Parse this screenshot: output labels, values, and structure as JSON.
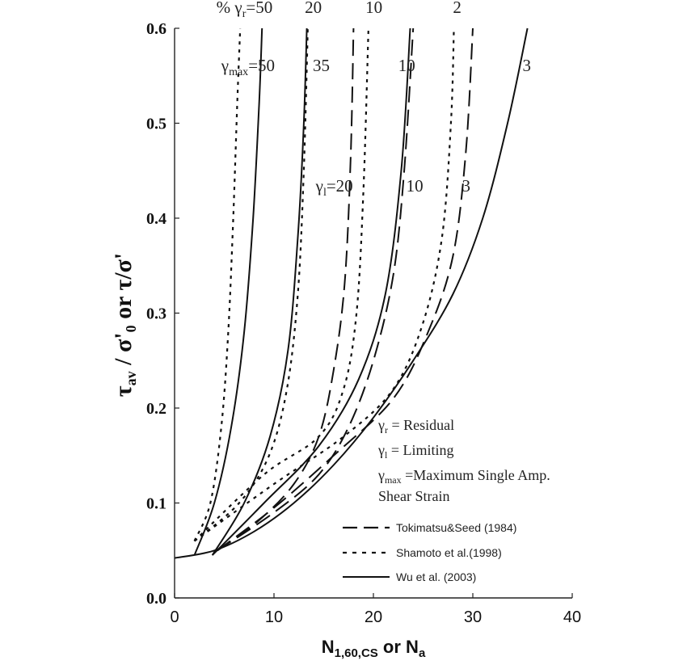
{
  "chart_data": {
    "type": "line",
    "xlabel": "N",
    "xlabel_sub": "1,60,CS",
    "xlabel_tail": " or N",
    "xlabel_tail_sub": "a",
    "ylabel_main": "τ",
    "ylabel_sub": "av",
    "ylabel_rest": " / σ'",
    "ylabel_sub2": "0",
    "ylabel_tail": " or τ/σ'",
    "xlim": [
      0,
      40
    ],
    "ylim": [
      0,
      0.6
    ],
    "xticks": [
      "0",
      "10",
      "20",
      "30",
      "40"
    ],
    "yticks": [
      "0.0",
      "0.1",
      "0.2",
      "0.3",
      "0.4",
      "0.5",
      "0.6"
    ],
    "grid": false,
    "legend": {
      "placement": "bottom-right",
      "entries": [
        {
          "label": "Tokimatsu&Seed (1984)",
          "style": "dashed"
        },
        {
          "label": "Shamoto  et al.(1998)",
          "style": "dotted"
        },
        {
          "label": "Wu et al. (2003)",
          "style": "solid"
        }
      ]
    },
    "definitions": [
      {
        "sym": "γ",
        "sub": "r",
        "text": " = Residual"
      },
      {
        "sym": "γ",
        "sub": "l",
        "text": " = Limiting"
      },
      {
        "sym": "γ",
        "sub": "max",
        "text": " =Maximum Single Amp."
      },
      {
        "sym": "",
        "sub": "",
        "text": "Shear Strain"
      }
    ],
    "annotations": [
      {
        "prefix": "% γ",
        "sub": "r",
        "text": "=50",
        "x": 4.2,
        "y": 0.616
      },
      {
        "prefix": "",
        "sub": "",
        "text": "20",
        "x": 13.1,
        "y": 0.616
      },
      {
        "prefix": "",
        "sub": "",
        "text": "10",
        "x": 19.2,
        "y": 0.616
      },
      {
        "prefix": "",
        "sub": "",
        "text": "2",
        "x": 28.0,
        "y": 0.616
      },
      {
        "prefix": "γ",
        "sub": "max",
        "text": "=50",
        "x": 4.7,
        "y": 0.555
      },
      {
        "prefix": "",
        "sub": "",
        "text": "35",
        "x": 13.9,
        "y": 0.555
      },
      {
        "prefix": "",
        "sub": "",
        "text": "10",
        "x": 22.5,
        "y": 0.555
      },
      {
        "prefix": "",
        "sub": "",
        "text": "3",
        "x": 35.0,
        "y": 0.555
      },
      {
        "prefix": "γ",
        "sub": "l",
        "text": "=20",
        "x": 14.2,
        "y": 0.428
      },
      {
        "prefix": "",
        "sub": "",
        "text": "10",
        "x": 23.3,
        "y": 0.428
      },
      {
        "prefix": "",
        "sub": "",
        "text": "3",
        "x": 28.9,
        "y": 0.428
      }
    ],
    "series": [
      {
        "group": "Tokimatsu&Seed (1984)",
        "style": "dashed",
        "x": [
          4.3,
          8.3,
          12,
          14.5,
          16,
          17.1,
          17.7,
          18.0
        ],
        "y": [
          0.05,
          0.08,
          0.12,
          0.17,
          0.24,
          0.33,
          0.46,
          0.6
        ]
      },
      {
        "group": "Tokimatsu&Seed (1984)",
        "style": "dashed",
        "x": [
          4.3,
          10,
          14.5,
          17.5,
          20,
          22,
          23.1,
          24.0
        ],
        "y": [
          0.05,
          0.09,
          0.13,
          0.18,
          0.25,
          0.34,
          0.45,
          0.6
        ]
      },
      {
        "group": "Tokimatsu&Seed (1984)",
        "style": "dashed",
        "x": [
          4.3,
          10,
          16,
          22,
          25.5,
          28,
          29.3,
          30.0
        ],
        "y": [
          0.05,
          0.095,
          0.15,
          0.21,
          0.28,
          0.36,
          0.47,
          0.6
        ]
      },
      {
        "group": "Shamoto  et al.(1998)",
        "style": "dotted",
        "x": [
          2.0,
          3.6,
          4.7,
          5.4,
          5.9,
          6.3,
          6.6
        ],
        "y": [
          0.06,
          0.1,
          0.18,
          0.28,
          0.4,
          0.52,
          0.6
        ]
      },
      {
        "group": "Shamoto  et al.(1998)",
        "style": "dotted",
        "x": [
          2.0,
          6.5,
          9.5,
          11.3,
          12.4,
          13.0,
          13.4
        ],
        "y": [
          0.06,
          0.1,
          0.15,
          0.22,
          0.32,
          0.45,
          0.6
        ]
      },
      {
        "group": "Shamoto  et al.(1998)",
        "style": "dotted",
        "x": [
          2.0,
          9,
          14.5,
          17.0,
          18.3,
          19.0,
          19.5
        ],
        "y": [
          0.06,
          0.13,
          0.17,
          0.22,
          0.3,
          0.43,
          0.6
        ]
      },
      {
        "group": "Shamoto  et al.(1998)",
        "style": "dotted",
        "x": [
          2.0,
          10,
          17,
          22.0,
          25.0,
          26.9,
          27.8,
          28.1
        ],
        "y": [
          0.06,
          0.12,
          0.17,
          0.22,
          0.29,
          0.38,
          0.5,
          0.6
        ]
      },
      {
        "group": "Wu et al. (2003)",
        "style": "solid",
        "x": [
          2.0,
          4.0,
          5.7,
          7.0,
          7.9,
          8.5,
          8.8
        ],
        "y": [
          0.045,
          0.1,
          0.18,
          0.28,
          0.4,
          0.52,
          0.6
        ]
      },
      {
        "group": "Wu et al. (2003)",
        "style": "solid",
        "x": [
          3.8,
          7.0,
          9.6,
          11.4,
          12.4,
          13.0,
          13.3
        ],
        "y": [
          0.045,
          0.1,
          0.17,
          0.26,
          0.38,
          0.5,
          0.6
        ]
      },
      {
        "group": "Wu et al. (2003)",
        "style": "solid",
        "x": [
          3.8,
          9.0,
          14.5,
          18.5,
          21.2,
          22.8,
          23.7
        ],
        "y": [
          0.045,
          0.1,
          0.16,
          0.23,
          0.32,
          0.45,
          0.6
        ]
      },
      {
        "group": "Wu et al. (2003)",
        "style": "solid",
        "x": [
          0,
          4.0,
          8.0,
          12.0,
          16.0,
          20.0,
          24.0,
          28.0,
          31.0,
          33.5,
          35.5
        ],
        "y": [
          0.042,
          0.05,
          0.07,
          0.1,
          0.14,
          0.19,
          0.25,
          0.32,
          0.4,
          0.5,
          0.6
        ]
      }
    ]
  }
}
